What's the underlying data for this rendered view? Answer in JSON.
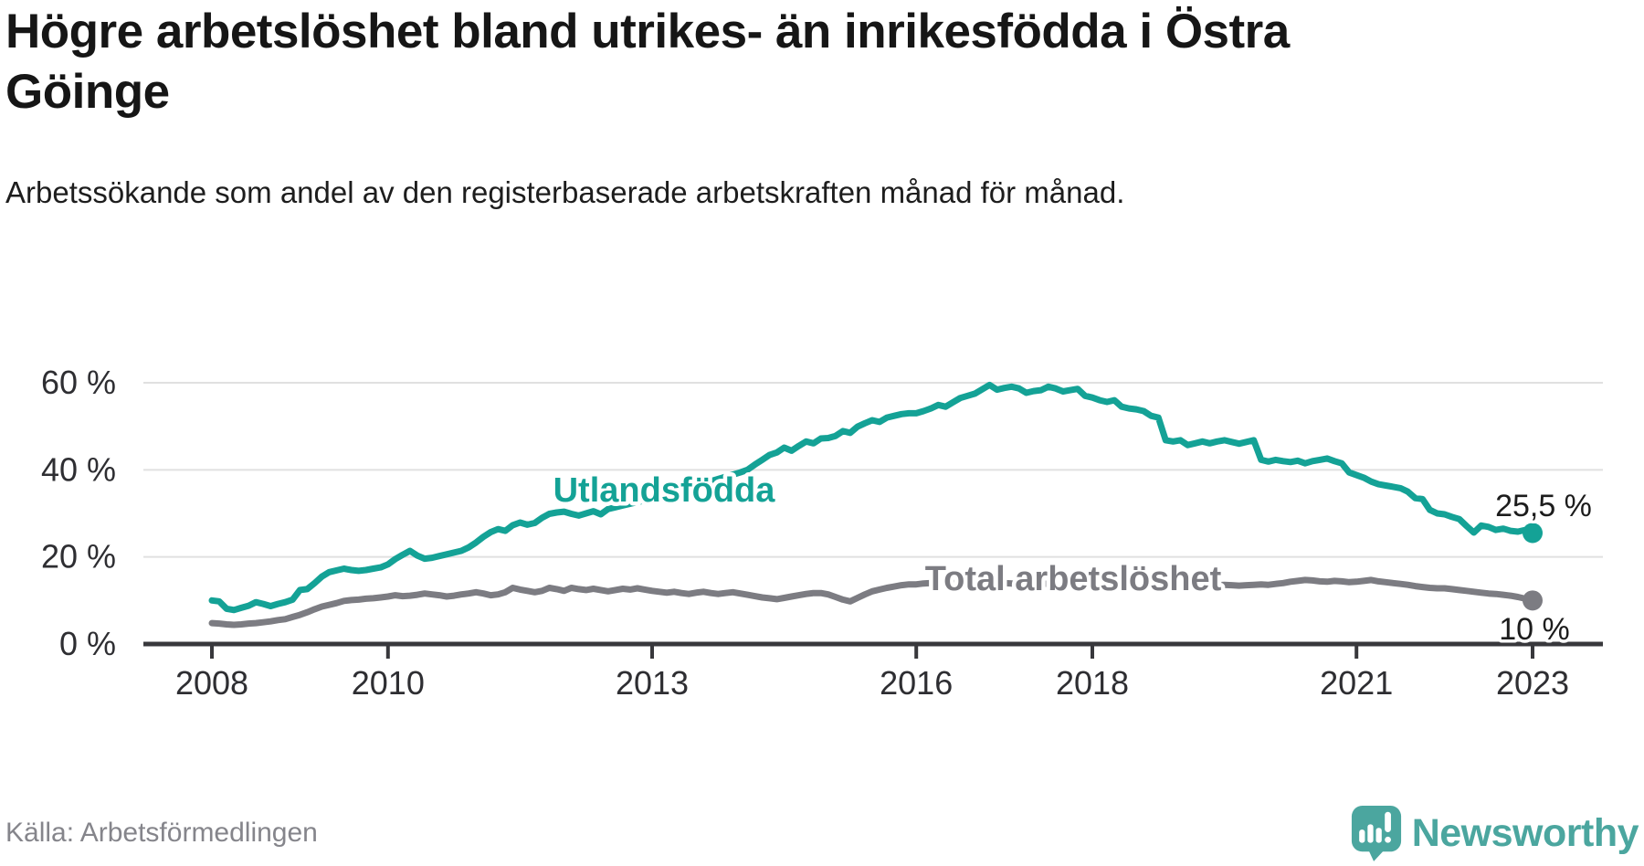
{
  "header": {
    "title": "Högre arbetslöshet bland utrikes- än inrikesfödda i Östra Göinge",
    "subtitle": "Arbetssökande som andel av den registerbaserade arbetskraften månad för månad."
  },
  "chart_data": {
    "type": "line",
    "title": "Högre arbetslöshet bland utrikes- än inrikesfödda i Östra Göinge",
    "x_unit": "month",
    "x_start_year": 2008,
    "x_end_year": 2023,
    "xlabel": "",
    "ylabel": "",
    "ylim": [
      0,
      63
    ],
    "grid": true,
    "legend_position": "inline-labels",
    "y_ticks": [
      {
        "value": 60,
        "label": "60 %"
      },
      {
        "value": 40,
        "label": "40 %"
      },
      {
        "value": 20,
        "label": "20 %"
      },
      {
        "value": 0,
        "label": "0 %"
      }
    ],
    "x_ticks": [
      {
        "year": 2008,
        "label": "2008"
      },
      {
        "year": 2010,
        "label": "2010"
      },
      {
        "year": 2013,
        "label": "2013"
      },
      {
        "year": 2016,
        "label": "2016"
      },
      {
        "year": 2018,
        "label": "2018"
      },
      {
        "year": 2021,
        "label": "2021"
      },
      {
        "year": 2023,
        "label": "2023"
      }
    ],
    "series": [
      {
        "name": "utlandsfodda",
        "label": "Utlandsfödda",
        "color": "#14a296",
        "end_label": "25,5 %",
        "end_value": 25.5,
        "values": [
          10.0,
          9.8,
          8.1,
          7.8,
          8.3,
          8.8,
          9.6,
          9.2,
          8.7,
          9.2,
          9.6,
          10.2,
          12.4,
          12.6,
          14.0,
          15.5,
          16.5,
          16.9,
          17.3,
          17.0,
          16.8,
          17.0,
          17.3,
          17.6,
          18.3,
          19.5,
          20.5,
          21.4,
          20.3,
          19.6,
          19.8,
          20.2,
          20.6,
          21.0,
          21.4,
          22.2,
          23.3,
          24.6,
          25.7,
          26.4,
          26.0,
          27.3,
          27.9,
          27.4,
          27.8,
          29.0,
          29.9,
          30.2,
          30.4,
          29.9,
          29.5,
          30.0,
          30.5,
          29.8,
          31.0,
          31.4,
          31.8,
          32.2,
          32.6,
          33.0,
          33.4,
          33.9,
          34.4,
          34.9,
          35.4,
          35.9,
          36.4,
          36.9,
          37.4,
          37.9,
          38.4,
          38.9,
          39.4,
          40.0,
          41.2,
          42.3,
          43.4,
          44.0,
          45.1,
          44.4,
          45.5,
          46.5,
          46.1,
          47.2,
          47.3,
          47.8,
          48.9,
          48.5,
          49.9,
          50.7,
          51.4,
          51.0,
          52.0,
          52.4,
          52.8,
          53.0,
          53.0,
          53.5,
          54.1,
          54.9,
          54.5,
          55.5,
          56.5,
          57.0,
          57.5,
          58.5,
          59.5,
          58.4,
          58.8,
          59.1,
          58.7,
          57.7,
          58.1,
          58.3,
          59.1,
          58.7,
          58.0,
          58.3,
          58.6,
          57.0,
          56.6,
          56.0,
          55.6,
          56.0,
          54.5,
          54.1,
          53.9,
          53.5,
          52.4,
          52.0,
          46.8,
          46.5,
          46.8,
          45.7,
          46.1,
          46.5,
          46.1,
          46.5,
          46.8,
          46.4,
          46.0,
          46.4,
          46.8,
          42.3,
          41.9,
          42.3,
          42.0,
          41.8,
          42.1,
          41.5,
          42.0,
          42.3,
          42.6,
          42.0,
          41.5,
          39.4,
          38.8,
          38.2,
          37.3,
          36.7,
          36.4,
          36.1,
          35.8,
          35.0,
          33.5,
          33.3,
          30.8,
          30.0,
          29.8,
          29.2,
          28.7,
          27.1,
          25.6,
          27.2,
          26.9,
          26.2,
          26.5,
          26.0,
          25.8,
          26.2,
          25.5
        ]
      },
      {
        "name": "total-arbetsloshet",
        "label": "Total arbetslöshet",
        "color": "#7c7c82",
        "end_label": "10 %",
        "end_value": 10.0,
        "values": [
          4.8,
          4.7,
          4.5,
          4.4,
          4.5,
          4.7,
          4.8,
          5.0,
          5.2,
          5.5,
          5.7,
          6.2,
          6.7,
          7.3,
          8.0,
          8.6,
          9.0,
          9.4,
          9.9,
          10.1,
          10.2,
          10.4,
          10.5,
          10.7,
          10.9,
          11.2,
          11.0,
          11.1,
          11.3,
          11.6,
          11.4,
          11.2,
          10.9,
          11.1,
          11.4,
          11.6,
          11.9,
          11.6,
          11.2,
          11.4,
          11.9,
          12.9,
          12.5,
          12.2,
          11.9,
          12.2,
          12.9,
          12.6,
          12.2,
          12.9,
          12.6,
          12.4,
          12.7,
          12.4,
          12.1,
          12.4,
          12.7,
          12.5,
          12.8,
          12.5,
          12.2,
          12.0,
          11.8,
          12.0,
          11.7,
          11.5,
          11.8,
          12.0,
          11.7,
          11.5,
          11.7,
          11.9,
          11.6,
          11.3,
          11.0,
          10.7,
          10.5,
          10.3,
          10.6,
          10.9,
          11.2,
          11.5,
          11.7,
          11.7,
          11.4,
          10.8,
          10.2,
          9.8,
          10.6,
          11.4,
          12.1,
          12.5,
          12.9,
          13.2,
          13.5,
          13.7,
          13.7,
          13.9,
          14.0,
          13.8,
          13.9,
          14.0,
          14.1,
          14.0,
          13.9,
          14.0,
          14.1,
          14.0,
          14.0,
          13.9,
          13.8,
          13.9,
          14.0,
          13.9,
          13.8,
          13.7,
          13.8,
          13.9,
          13.8,
          13.7,
          13.6,
          13.5,
          13.4,
          13.5,
          13.6,
          13.5,
          13.4,
          13.3,
          13.4,
          13.5,
          13.4,
          13.3,
          13.4,
          13.5,
          13.4,
          13.3,
          13.4,
          13.5,
          13.6,
          13.5,
          13.4,
          13.5,
          13.6,
          13.7,
          13.6,
          13.8,
          14.0,
          14.3,
          14.5,
          14.7,
          14.6,
          14.4,
          14.3,
          14.5,
          14.4,
          14.2,
          14.3,
          14.5,
          14.7,
          14.4,
          14.2,
          14.0,
          13.8,
          13.6,
          13.3,
          13.1,
          12.9,
          12.8,
          12.8,
          12.6,
          12.4,
          12.2,
          12.0,
          11.8,
          11.6,
          11.5,
          11.3,
          11.1,
          10.8,
          10.4,
          10.0
        ]
      }
    ]
  },
  "colors": {
    "accent_teal": "#14a296",
    "line_gray": "#7c7c82",
    "grid": "#e0e0e0",
    "axis": "#38383c",
    "brand_teal": "#4ba69f"
  },
  "footer": {
    "source": "Källa: Arbetsförmedlingen",
    "brand": "Newsworthy"
  }
}
